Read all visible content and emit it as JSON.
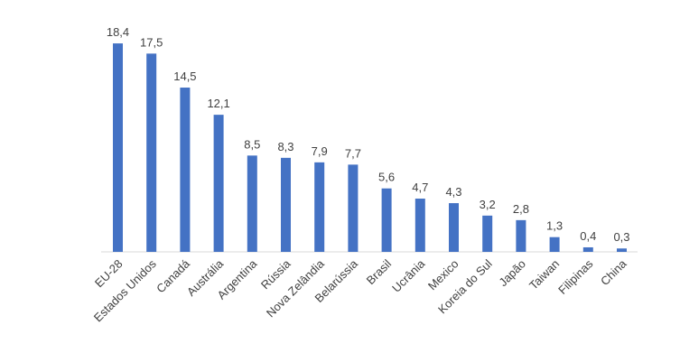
{
  "chart_data": {
    "type": "bar",
    "title": "",
    "xlabel": "",
    "ylabel": "",
    "ylim": [
      0,
      20
    ],
    "grid": false,
    "legend": "none",
    "color": "#4472C4",
    "categories": [
      "EU-28",
      "Estados Unidos",
      "Canadá",
      "Austrália",
      "Argentina",
      "Rússia",
      "Nova Zelândia",
      "Belarússia",
      "Brasil",
      "Ucrânia",
      "Mexico",
      "Koreia do Sul",
      "Japão",
      "Taiwan",
      "Filipinas",
      "China"
    ],
    "values": [
      18.4,
      17.5,
      14.5,
      12.1,
      8.5,
      8.3,
      7.9,
      7.7,
      5.6,
      4.7,
      4.3,
      3.2,
      2.8,
      1.3,
      0.4,
      0.3
    ],
    "value_labels": [
      "18,4",
      "17,5",
      "14,5",
      "12,1",
      "8,5",
      "8,3",
      "7,9",
      "7,7",
      "5,6",
      "4,7",
      "4,3",
      "3,2",
      "2,8",
      "1,3",
      "0,4",
      "0,3"
    ]
  }
}
